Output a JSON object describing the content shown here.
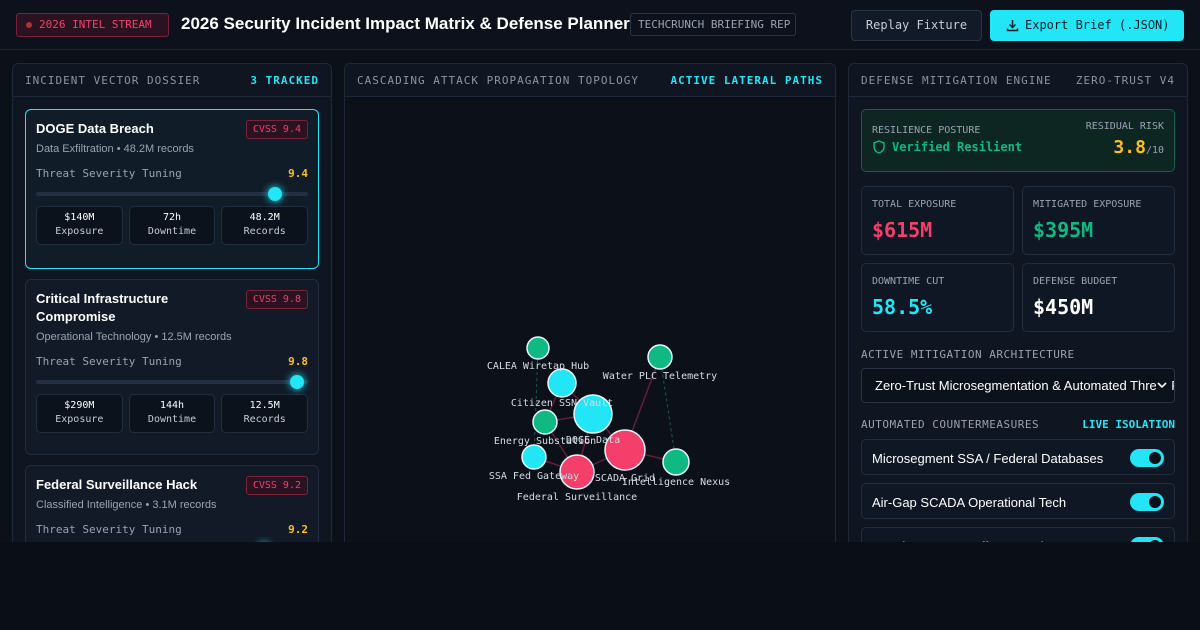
{
  "header": {
    "badge": "2026 INTEL STREAM",
    "title": "2026 Security Incident Impact Matrix & Defense Planner",
    "tag": "TECHCRUNCH BRIEFING REP",
    "replay": "Replay Fixture",
    "export": "Export Brief (.JSON)"
  },
  "dossier": {
    "title": "INCIDENT VECTOR DOSSIER",
    "count": "3 TRACKED",
    "slider_range": [
      5,
      10
    ],
    "incidents": [
      {
        "name": "DOGE Data Breach",
        "cvss": "CVSS 9.4",
        "vector": "Data Exfiltration",
        "records": "48.2M records",
        "tuning": "Threat Severity Tuning",
        "severity": 9.4,
        "stats": [
          {
            "value": "$140M",
            "label": "Exposure"
          },
          {
            "value": "72h",
            "label": "Downtime"
          },
          {
            "value": "48.2M",
            "label": "Records"
          }
        ]
      },
      {
        "name": "Critical Infrastructure Compromise",
        "cvss": "CVSS 9.8",
        "vector": "Operational Technology",
        "records": "12.5M records",
        "tuning": "Threat Severity Tuning",
        "severity": 9.8,
        "stats": [
          {
            "value": "$290M",
            "label": "Exposure"
          },
          {
            "value": "144h",
            "label": "Downtime"
          },
          {
            "value": "12.5M",
            "label": "Records"
          }
        ]
      },
      {
        "name": "Federal Surveillance Hack",
        "cvss": "CVSS 9.2",
        "vector": "Classified Intelligence",
        "records": "3.1M records",
        "tuning": "Threat Severity Tuning",
        "severity": 9.2,
        "stats": []
      }
    ]
  },
  "topology": {
    "title": "CASCADING ATTACK PROPAGATION TOPOLOGY",
    "tag": "ACTIVE LATERAL PATHS",
    "nodes": [
      {
        "label": "CALEA Wiretap Hub",
        "color": "#10b981"
      },
      {
        "label": "Water PLC Telemetry",
        "color": "#10b981"
      },
      {
        "label": "Citizen SSN Vault",
        "color": "#22e5f5"
      },
      {
        "label": "DOGE Data",
        "color": "#22e5f5"
      },
      {
        "label": "Energy Substation",
        "color": "#10b981"
      },
      {
        "label": "SCADA Grid",
        "color": "#f43f6b"
      },
      {
        "label": "SSA Fed Gateway",
        "color": "#22e5f5"
      },
      {
        "label": "Intelligence Nexus",
        "color": "#10b981"
      },
      {
        "label": "Federal Surveillance",
        "color": "#f43f6b"
      }
    ]
  },
  "mitigation": {
    "title": "DEFENSE MITIGATION ENGINE",
    "tag": "ZERO-TRUST V4",
    "posture": {
      "label": "RESILIENCE POSTURE",
      "status": "Verified Resilient",
      "risk_label": "RESIDUAL RISK",
      "risk": "3.8",
      "risk_max": "/10"
    },
    "metrics": [
      {
        "label": "TOTAL EXPOSURE",
        "value": "$615M",
        "color": "#f43f6b"
      },
      {
        "label": "MITIGATED EXPOSURE",
        "value": "$395M",
        "color": "#10b981"
      },
      {
        "label": "DOWNTIME CUT",
        "value": "58.5%",
        "color": "#22e5f5"
      },
      {
        "label": "DEFENSE BUDGET",
        "value": "$450M",
        "color": "#ffffff"
      }
    ],
    "architecture_label": "ACTIVE MITIGATION ARCHITECTURE",
    "architecture": "Zero-Trust Microsegmentation & Automated Threat Response",
    "countermeasures_label": "AUTOMATED COUNTERMEASURES",
    "countermeasures_tag": "LIVE ISOLATION",
    "countermeasures": [
      "Microsegment SSA / Federal Databases",
      "Air-Gap SCADA Operational Tech",
      "Revoke Rogue Staffer API Tokens"
    ]
  }
}
